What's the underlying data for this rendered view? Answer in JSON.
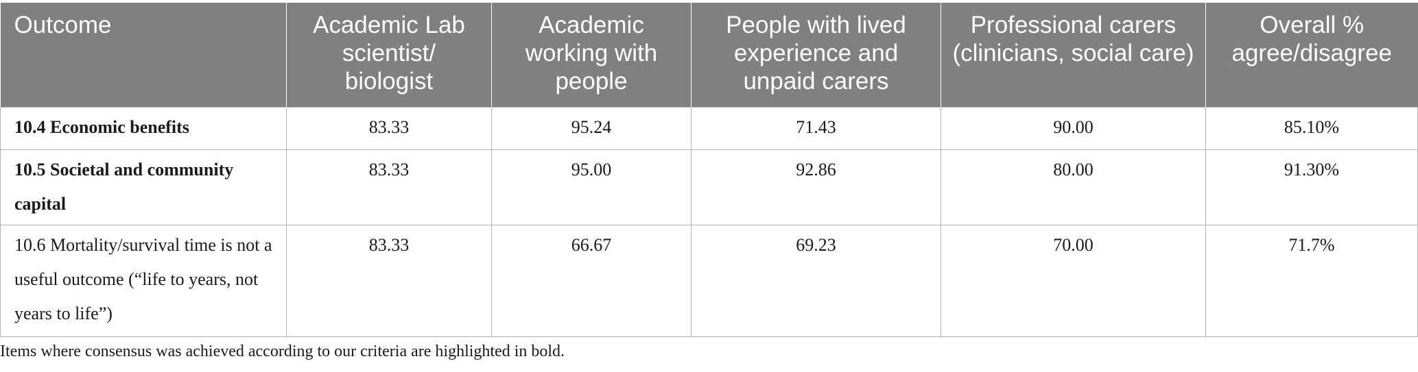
{
  "table": {
    "headers": [
      "Outcome",
      "Academic Lab scientist/ biologist",
      "Academic working with people",
      "People with lived experience and unpaid carers",
      "Professional carers (clinicians, social care)",
      "Overall % agree/disagree"
    ],
    "rows": [
      {
        "outcome": "10.4 Economic benefits",
        "bold": true,
        "values": [
          "83.33",
          "95.24",
          "71.43",
          "90.00",
          "85.10%"
        ]
      },
      {
        "outcome": "10.5 Societal and community capital",
        "bold": true,
        "values": [
          "83.33",
          "95.00",
          "92.86",
          "80.00",
          "91.30%"
        ]
      },
      {
        "outcome": "10.6 Mortality/survival time is not a useful outcome (“life to years, not years to life”)",
        "bold": false,
        "values": [
          "83.33",
          "66.67",
          "69.23",
          "70.00",
          "71.7%"
        ]
      }
    ]
  },
  "footnote": "Items where consensus was achieved according to our criteria are highlighted in bold."
}
